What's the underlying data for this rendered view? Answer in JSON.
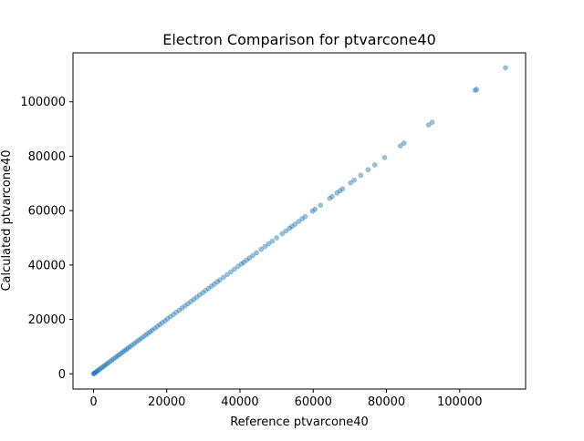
{
  "chart_data": {
    "type": "scatter",
    "title": "Electron Comparison for ptvarcone40",
    "xlabel": "Reference ptvarcone40",
    "ylabel": "Calculated ptvarcone40",
    "xlim": [
      -5600,
      118000
    ],
    "ylim": [
      -5600,
      118000
    ],
    "xticks": [
      0,
      20000,
      40000,
      60000,
      80000,
      100000
    ],
    "yticks": [
      0,
      20000,
      40000,
      60000,
      80000,
      100000
    ],
    "xtick_labels": [
      "0",
      "20000",
      "40000",
      "60000",
      "80000",
      "100000"
    ],
    "ytick_labels": [
      "0",
      "20000",
      "40000",
      "60000",
      "80000",
      "100000"
    ],
    "grid": false,
    "marker_color": "#1f77b4",
    "marker_opacity": 0.45,
    "series": [
      {
        "points": [
          [
            0,
            0
          ],
          [
            150,
            150
          ],
          [
            300,
            300
          ],
          [
            500,
            500
          ],
          [
            750,
            750
          ],
          [
            1000,
            1000
          ],
          [
            1300,
            1300
          ],
          [
            1600,
            1600
          ],
          [
            2000,
            2000
          ],
          [
            2400,
            2400
          ],
          [
            2800,
            2800
          ],
          [
            3200,
            3200
          ],
          [
            3600,
            3600
          ],
          [
            4000,
            4000
          ],
          [
            4500,
            4500
          ],
          [
            5000,
            5000
          ],
          [
            5500,
            5500
          ],
          [
            6000,
            6000
          ],
          [
            6500,
            6500
          ],
          [
            7000,
            7000
          ],
          [
            7500,
            7500
          ],
          [
            8000,
            8000
          ],
          [
            8500,
            8500
          ],
          [
            9000,
            9000
          ],
          [
            9500,
            9500
          ],
          [
            10000,
            10000
          ],
          [
            10600,
            10600
          ],
          [
            11200,
            11200
          ],
          [
            11800,
            11800
          ],
          [
            12400,
            12400
          ],
          [
            13000,
            13000
          ],
          [
            13600,
            13600
          ],
          [
            14200,
            14200
          ],
          [
            14800,
            14800
          ],
          [
            15400,
            15400
          ],
          [
            16000,
            16000
          ],
          [
            16700,
            16700
          ],
          [
            17400,
            17400
          ],
          [
            18100,
            18100
          ],
          [
            18800,
            18800
          ],
          [
            19500,
            19500
          ],
          [
            20200,
            20200
          ],
          [
            21000,
            21000
          ],
          [
            21800,
            21800
          ],
          [
            22600,
            22600
          ],
          [
            23400,
            23400
          ],
          [
            24200,
            24200
          ],
          [
            25000,
            25000
          ],
          [
            25800,
            25800
          ],
          [
            26600,
            26600
          ],
          [
            27400,
            27400
          ],
          [
            28200,
            28200
          ],
          [
            29000,
            29000
          ],
          [
            29800,
            29800
          ],
          [
            30600,
            30600
          ],
          [
            31400,
            31400
          ],
          [
            32200,
            32200
          ],
          [
            33000,
            33000
          ],
          [
            33800,
            33800
          ],
          [
            34500,
            34500
          ],
          [
            35500,
            35500
          ],
          [
            36500,
            36500
          ],
          [
            37500,
            37500
          ],
          [
            38500,
            38500
          ],
          [
            39500,
            39500
          ],
          [
            40400,
            40400
          ],
          [
            41000,
            41000
          ],
          [
            41800,
            41800
          ],
          [
            42600,
            42600
          ],
          [
            43500,
            43500
          ],
          [
            44500,
            44500
          ],
          [
            45800,
            45800
          ],
          [
            46800,
            46800
          ],
          [
            47800,
            47800
          ],
          [
            48800,
            48800
          ],
          [
            50000,
            50000
          ],
          [
            51500,
            51500
          ],
          [
            52500,
            52500
          ],
          [
            53500,
            53500
          ],
          [
            54200,
            54200
          ],
          [
            55000,
            55000
          ],
          [
            56000,
            56000
          ],
          [
            57000,
            57000
          ],
          [
            57800,
            57800
          ],
          [
            59800,
            59800
          ],
          [
            60500,
            60500
          ],
          [
            62000,
            62000
          ],
          [
            64500,
            64500
          ],
          [
            65200,
            65200
          ],
          [
            66500,
            66500
          ],
          [
            67300,
            67300
          ],
          [
            68000,
            68000
          ],
          [
            70200,
            70200
          ],
          [
            71200,
            71200
          ],
          [
            73000,
            73000
          ],
          [
            75000,
            75000
          ],
          [
            76800,
            76800
          ],
          [
            79500,
            79500
          ],
          [
            83800,
            83800
          ],
          [
            84800,
            84800
          ],
          [
            91500,
            91500
          ],
          [
            92500,
            92500
          ],
          [
            104200,
            104200
          ],
          [
            104600,
            104600
          ],
          [
            112500,
            112500
          ]
        ]
      }
    ]
  }
}
